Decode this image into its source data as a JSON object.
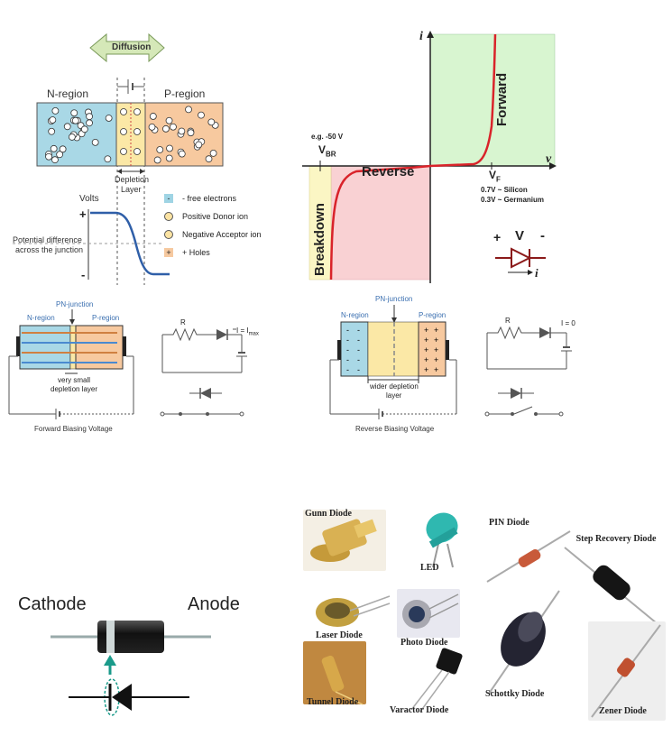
{
  "pn_junction": {
    "diffusion_label": "Diffusion",
    "n_region_label": "N-region",
    "p_region_label": "P-region",
    "depletion_label_1": "Depletion",
    "depletion_label_2": "Layer",
    "volts_label": "Volts",
    "plus_sign": "+",
    "minus_sign": "-",
    "potential_label_1": "Potential difference",
    "potential_label_2": "across the junction",
    "legend": [
      {
        "symbol": "-",
        "text": "- free electrons",
        "color": "#9fd4e4"
      },
      {
        "symbol": "⊙",
        "text": "Positive Donor ion",
        "color": "#fbe3a3"
      },
      {
        "symbol": "○",
        "text": "Negative Acceptor ion",
        "color": "#fbe3a3"
      },
      {
        "symbol": "+",
        "text": "+ Holes",
        "color": "#f6c9a0"
      }
    ]
  },
  "iv_curve": {
    "i_axis_label": "i",
    "v_axis_label": "v",
    "forward_label": "Forward",
    "reverse_label": "Reverse",
    "breakdown_label": "Breakdown",
    "vbr_example": "e.g. -50 V",
    "vbr_label": "V",
    "vbr_sub": "BR",
    "vf_label": "V",
    "vf_sub": "F",
    "silicon_note": "0.7V ~ Silicon",
    "germanium_note": "0.3V ~ Germanium",
    "symbol_plus": "+",
    "symbol_v": "V",
    "symbol_minus": "-",
    "symbol_i": "i"
  },
  "forward_bias": {
    "pn_junction_label": "PN-junction",
    "n_region_label": "N-region",
    "p_region_label": "P-region",
    "depletion_note_1": "very small",
    "depletion_note_2": "depletion layer",
    "caption": "Forward Biasing Voltage",
    "resistor_label": "R",
    "current_label": "I = I",
    "current_sub": "max"
  },
  "reverse_bias": {
    "pn_junction_label": "PN-junction",
    "n_region_label": "N-region",
    "p_region_label": "P-region",
    "depletion_note_1": "wider depletion",
    "depletion_note_2": "layer",
    "caption": "Reverse Biasing Voltage",
    "resistor_label": "R",
    "current_label": "I = 0"
  },
  "diode_package": {
    "cathode_label": "Cathode",
    "anode_label": "Anode"
  },
  "diode_types": [
    {
      "name": "Gunn Diode"
    },
    {
      "name": "LED"
    },
    {
      "name": "PIN Diode"
    },
    {
      "name": "Step Recovery Diode"
    },
    {
      "name": "Laser Diode"
    },
    {
      "name": "Photo Diode"
    },
    {
      "name": "Schottky Diode"
    },
    {
      "name": "Zener Diode"
    },
    {
      "name": "Tunnel Diode"
    },
    {
      "name": "Varactor Diode"
    }
  ],
  "colors": {
    "n_region": "#a9d8e6",
    "p_region": "#f7c99f",
    "depletion": "#fbe8a6",
    "forward_zone": "#d8f5d0",
    "reverse_zone": "#f9d1d3",
    "breakdown_zone": "#fbf6c4",
    "curve": "#d9232a",
    "diode_symbol": "#8b1a1a",
    "accent_arrow": "#1a9a8a"
  }
}
